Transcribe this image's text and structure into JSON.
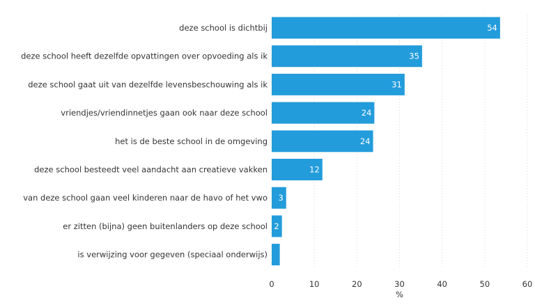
{
  "chart_data": {
    "type": "bar",
    "orientation": "horizontal",
    "categories": [
      "deze school is dichtbij",
      "deze school heeft dezelfde opvattingen over opvoeding als ik",
      "deze school gaat uit van dezelfde levensbeschouwing als ik",
      "vriendjes/vriendinnetjes gaan ook naar deze school",
      "het is de beste school in de omgeving",
      "deze school besteedt veel aandacht aan creatieve vakken",
      "van deze school gaan veel kinderen naar de havo of het vwo",
      "er zitten (bijna) geen buitenlanders op deze school",
      "is verwijzing voor gegeven (speciaal onderwijs)"
    ],
    "values": [
      53.6,
      35.3,
      31.2,
      24.1,
      23.8,
      11.9,
      3.4,
      2.4,
      1.9
    ],
    "data_labels": [
      "54",
      "35",
      "31",
      "24",
      "24",
      "12",
      "3",
      "2",
      ""
    ],
    "xlim": [
      0,
      60
    ],
    "xticks": [
      "0",
      "10",
      "20",
      "30",
      "40",
      "50",
      "60"
    ],
    "xlabel": "%",
    "ylabel": "",
    "title": "",
    "grid": "vertical, dotted",
    "bar_color": "#239cdb"
  }
}
